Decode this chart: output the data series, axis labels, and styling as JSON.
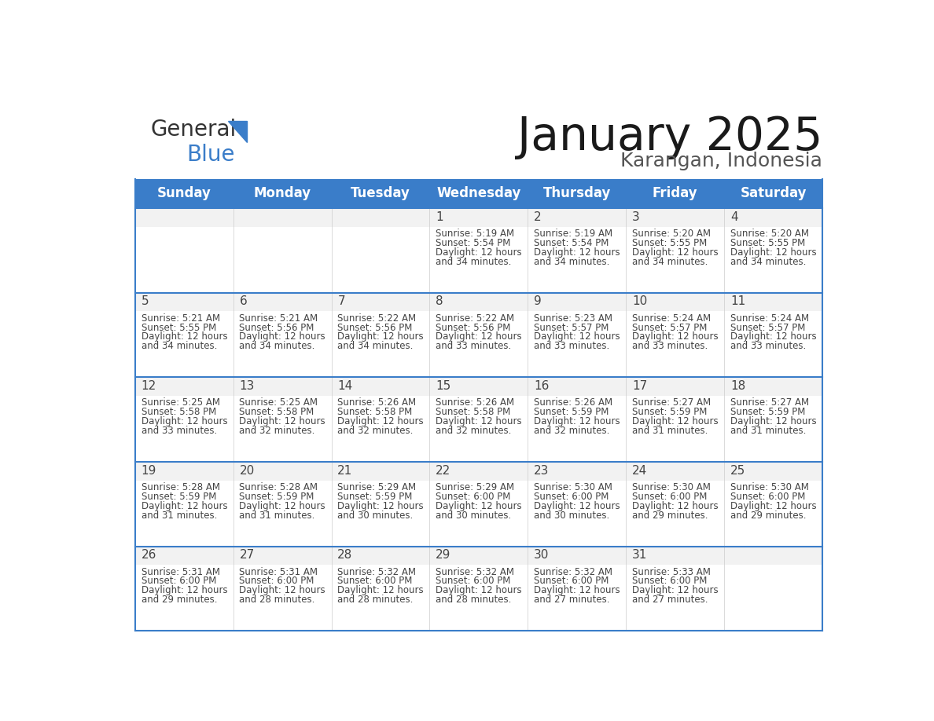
{
  "title": "January 2025",
  "subtitle": "Karangan, Indonesia",
  "header_color": "#3A7DC9",
  "header_text_color": "#FFFFFF",
  "cell_bg_color": "#FFFFFF",
  "cell_top_band_color": "#F2F2F2",
  "border_color": "#3A7DC9",
  "text_color": "#444444",
  "days_of_week": [
    "Sunday",
    "Monday",
    "Tuesday",
    "Wednesday",
    "Thursday",
    "Friday",
    "Saturday"
  ],
  "calendar_data": [
    [
      {
        "day": "",
        "sunrise": "",
        "sunset": "",
        "daylight_h": "",
        "daylight_m": ""
      },
      {
        "day": "",
        "sunrise": "",
        "sunset": "",
        "daylight_h": "",
        "daylight_m": ""
      },
      {
        "day": "",
        "sunrise": "",
        "sunset": "",
        "daylight_h": "",
        "daylight_m": ""
      },
      {
        "day": "1",
        "sunrise": "5:19 AM",
        "sunset": "5:54 PM",
        "daylight_h": "12",
        "daylight_m": "34"
      },
      {
        "day": "2",
        "sunrise": "5:19 AM",
        "sunset": "5:54 PM",
        "daylight_h": "12",
        "daylight_m": "34"
      },
      {
        "day": "3",
        "sunrise": "5:20 AM",
        "sunset": "5:55 PM",
        "daylight_h": "12",
        "daylight_m": "34"
      },
      {
        "day": "4",
        "sunrise": "5:20 AM",
        "sunset": "5:55 PM",
        "daylight_h": "12",
        "daylight_m": "34"
      }
    ],
    [
      {
        "day": "5",
        "sunrise": "5:21 AM",
        "sunset": "5:55 PM",
        "daylight_h": "12",
        "daylight_m": "34"
      },
      {
        "day": "6",
        "sunrise": "5:21 AM",
        "sunset": "5:56 PM",
        "daylight_h": "12",
        "daylight_m": "34"
      },
      {
        "day": "7",
        "sunrise": "5:22 AM",
        "sunset": "5:56 PM",
        "daylight_h": "12",
        "daylight_m": "34"
      },
      {
        "day": "8",
        "sunrise": "5:22 AM",
        "sunset": "5:56 PM",
        "daylight_h": "12",
        "daylight_m": "33"
      },
      {
        "day": "9",
        "sunrise": "5:23 AM",
        "sunset": "5:57 PM",
        "daylight_h": "12",
        "daylight_m": "33"
      },
      {
        "day": "10",
        "sunrise": "5:24 AM",
        "sunset": "5:57 PM",
        "daylight_h": "12",
        "daylight_m": "33"
      },
      {
        "day": "11",
        "sunrise": "5:24 AM",
        "sunset": "5:57 PM",
        "daylight_h": "12",
        "daylight_m": "33"
      }
    ],
    [
      {
        "day": "12",
        "sunrise": "5:25 AM",
        "sunset": "5:58 PM",
        "daylight_h": "12",
        "daylight_m": "33"
      },
      {
        "day": "13",
        "sunrise": "5:25 AM",
        "sunset": "5:58 PM",
        "daylight_h": "12",
        "daylight_m": "32"
      },
      {
        "day": "14",
        "sunrise": "5:26 AM",
        "sunset": "5:58 PM",
        "daylight_h": "12",
        "daylight_m": "32"
      },
      {
        "day": "15",
        "sunrise": "5:26 AM",
        "sunset": "5:58 PM",
        "daylight_h": "12",
        "daylight_m": "32"
      },
      {
        "day": "16",
        "sunrise": "5:26 AM",
        "sunset": "5:59 PM",
        "daylight_h": "12",
        "daylight_m": "32"
      },
      {
        "day": "17",
        "sunrise": "5:27 AM",
        "sunset": "5:59 PM",
        "daylight_h": "12",
        "daylight_m": "31"
      },
      {
        "day": "18",
        "sunrise": "5:27 AM",
        "sunset": "5:59 PM",
        "daylight_h": "12",
        "daylight_m": "31"
      }
    ],
    [
      {
        "day": "19",
        "sunrise": "5:28 AM",
        "sunset": "5:59 PM",
        "daylight_h": "12",
        "daylight_m": "31"
      },
      {
        "day": "20",
        "sunrise": "5:28 AM",
        "sunset": "5:59 PM",
        "daylight_h": "12",
        "daylight_m": "31"
      },
      {
        "day": "21",
        "sunrise": "5:29 AM",
        "sunset": "5:59 PM",
        "daylight_h": "12",
        "daylight_m": "30"
      },
      {
        "day": "22",
        "sunrise": "5:29 AM",
        "sunset": "6:00 PM",
        "daylight_h": "12",
        "daylight_m": "30"
      },
      {
        "day": "23",
        "sunrise": "5:30 AM",
        "sunset": "6:00 PM",
        "daylight_h": "12",
        "daylight_m": "30"
      },
      {
        "day": "24",
        "sunrise": "5:30 AM",
        "sunset": "6:00 PM",
        "daylight_h": "12",
        "daylight_m": "29"
      },
      {
        "day": "25",
        "sunrise": "5:30 AM",
        "sunset": "6:00 PM",
        "daylight_h": "12",
        "daylight_m": "29"
      }
    ],
    [
      {
        "day": "26",
        "sunrise": "5:31 AM",
        "sunset": "6:00 PM",
        "daylight_h": "12",
        "daylight_m": "29"
      },
      {
        "day": "27",
        "sunrise": "5:31 AM",
        "sunset": "6:00 PM",
        "daylight_h": "12",
        "daylight_m": "28"
      },
      {
        "day": "28",
        "sunrise": "5:32 AM",
        "sunset": "6:00 PM",
        "daylight_h": "12",
        "daylight_m": "28"
      },
      {
        "day": "29",
        "sunrise": "5:32 AM",
        "sunset": "6:00 PM",
        "daylight_h": "12",
        "daylight_m": "28"
      },
      {
        "day": "30",
        "sunrise": "5:32 AM",
        "sunset": "6:00 PM",
        "daylight_h": "12",
        "daylight_m": "27"
      },
      {
        "day": "31",
        "sunrise": "5:33 AM",
        "sunset": "6:00 PM",
        "daylight_h": "12",
        "daylight_m": "27"
      },
      {
        "day": "",
        "sunrise": "",
        "sunset": "",
        "daylight_h": "",
        "daylight_m": ""
      }
    ]
  ],
  "logo_general_color": "#333333",
  "logo_blue_color": "#3A7DC9",
  "logo_triangle_color": "#3A7DC9",
  "title_fontsize": 42,
  "subtitle_fontsize": 18,
  "header_fontsize": 12,
  "day_number_fontsize": 11,
  "info_fontsize": 8.5
}
